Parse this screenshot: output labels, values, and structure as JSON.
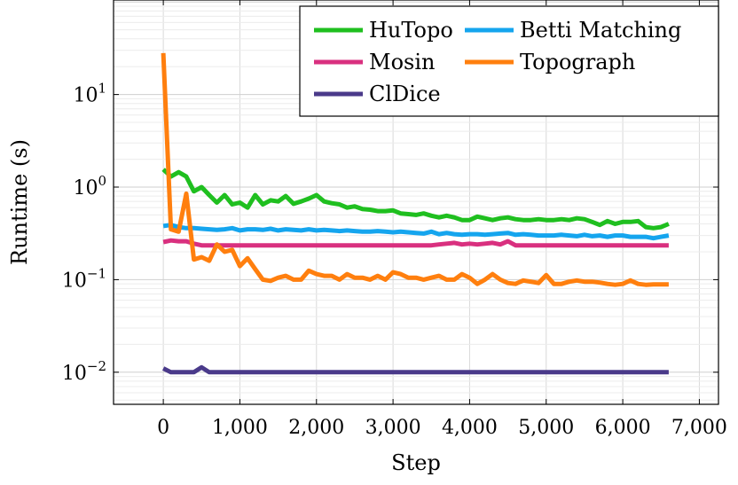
{
  "chart_data": {
    "type": "line",
    "title": "",
    "xlabel": "Step",
    "ylabel": "Runtime (s)",
    "xlim": [
      -650,
      7250
    ],
    "ylim": [
      0.0045,
      105
    ],
    "yscale": "log",
    "grid": true,
    "legend": "top-right",
    "x_ticks": [
      {
        "value": 0,
        "label": "0"
      },
      {
        "value": 1000,
        "label": "1,000"
      },
      {
        "value": 2000,
        "label": "2,000"
      },
      {
        "value": 3000,
        "label": "3,000"
      },
      {
        "value": 4000,
        "label": "4,000"
      },
      {
        "value": 5000,
        "label": "5,000"
      },
      {
        "value": 6000,
        "label": "6,000"
      },
      {
        "value": 7000,
        "label": "7,000"
      }
    ],
    "y_ticks": [
      {
        "value": 0.01,
        "base": "10",
        "exp": "−2"
      },
      {
        "value": 0.1,
        "base": "10",
        "exp": "−1"
      },
      {
        "value": 1,
        "base": "10",
        "exp": "0"
      },
      {
        "value": 10,
        "base": "10",
        "exp": "1"
      }
    ],
    "series": [
      {
        "name": "HuTopo",
        "color": "#1fbf1f",
        "x": [
          0,
          100,
          200,
          300,
          400,
          500,
          600,
          700,
          800,
          900,
          1000,
          1100,
          1200,
          1300,
          1400,
          1500,
          1600,
          1700,
          1800,
          1900,
          2000,
          2100,
          2200,
          2300,
          2400,
          2500,
          2600,
          2700,
          2800,
          2900,
          3000,
          3100,
          3200,
          3300,
          3400,
          3500,
          3600,
          3700,
          3800,
          3900,
          4000,
          4100,
          4200,
          4300,
          4400,
          4500,
          4600,
          4700,
          4800,
          4900,
          5000,
          5100,
          5200,
          5300,
          5400,
          5500,
          5600,
          5700,
          5800,
          5900,
          6000,
          6100,
          6200,
          6300,
          6400,
          6500,
          6600
        ],
        "y": [
          1.55,
          1.3,
          1.45,
          1.3,
          0.9,
          1.0,
          0.82,
          0.68,
          0.82,
          0.65,
          0.68,
          0.6,
          0.82,
          0.65,
          0.72,
          0.7,
          0.8,
          0.66,
          0.7,
          0.75,
          0.82,
          0.7,
          0.67,
          0.65,
          0.6,
          0.62,
          0.58,
          0.57,
          0.55,
          0.55,
          0.56,
          0.52,
          0.51,
          0.5,
          0.52,
          0.49,
          0.47,
          0.49,
          0.47,
          0.44,
          0.44,
          0.48,
          0.46,
          0.44,
          0.46,
          0.47,
          0.45,
          0.44,
          0.44,
          0.45,
          0.44,
          0.44,
          0.45,
          0.44,
          0.46,
          0.45,
          0.42,
          0.39,
          0.43,
          0.4,
          0.42,
          0.42,
          0.43,
          0.37,
          0.36,
          0.37,
          0.4
        ]
      },
      {
        "name": "Betti Matching",
        "color": "#15a5ee",
        "x": [
          0,
          100,
          200,
          300,
          400,
          500,
          600,
          700,
          800,
          900,
          1000,
          1100,
          1200,
          1300,
          1400,
          1500,
          1600,
          1700,
          1800,
          1900,
          2000,
          2100,
          2200,
          2300,
          2400,
          2500,
          2600,
          2700,
          2800,
          2900,
          3000,
          3100,
          3200,
          3300,
          3400,
          3500,
          3600,
          3700,
          3800,
          3900,
          4000,
          4100,
          4200,
          4300,
          4400,
          4500,
          4600,
          4700,
          4800,
          4900,
          5000,
          5100,
          5200,
          5300,
          5400,
          5500,
          5600,
          5700,
          5800,
          5900,
          6000,
          6100,
          6200,
          6300,
          6400,
          6500,
          6600
        ],
        "y": [
          0.38,
          0.39,
          0.37,
          0.36,
          0.36,
          0.355,
          0.35,
          0.345,
          0.35,
          0.36,
          0.34,
          0.35,
          0.35,
          0.345,
          0.355,
          0.34,
          0.35,
          0.345,
          0.34,
          0.35,
          0.34,
          0.345,
          0.34,
          0.335,
          0.34,
          0.335,
          0.33,
          0.33,
          0.335,
          0.33,
          0.325,
          0.33,
          0.325,
          0.32,
          0.315,
          0.33,
          0.31,
          0.32,
          0.31,
          0.305,
          0.31,
          0.31,
          0.305,
          0.31,
          0.315,
          0.32,
          0.305,
          0.31,
          0.305,
          0.3,
          0.3,
          0.3,
          0.305,
          0.3,
          0.295,
          0.305,
          0.295,
          0.3,
          0.29,
          0.3,
          0.3,
          0.29,
          0.29,
          0.29,
          0.28,
          0.29,
          0.3
        ]
      },
      {
        "name": "Mosin",
        "color": "#d9307f",
        "x": [
          0,
          100,
          200,
          300,
          400,
          500,
          600,
          700,
          800,
          900,
          1000,
          1100,
          1200,
          1300,
          1400,
          1500,
          1600,
          1700,
          1800,
          1900,
          2000,
          2100,
          2200,
          2300,
          2400,
          2500,
          2600,
          2700,
          2800,
          2900,
          3000,
          3100,
          3200,
          3300,
          3400,
          3500,
          3600,
          3700,
          3800,
          3900,
          4000,
          4100,
          4200,
          4300,
          4400,
          4500,
          4600,
          4700,
          4800,
          4900,
          5000,
          5100,
          5200,
          5300,
          5400,
          5500,
          5600,
          5700,
          5800,
          5900,
          6000,
          6100,
          6200,
          6300,
          6400,
          6500,
          6600
        ],
        "y": [
          0.255,
          0.265,
          0.26,
          0.26,
          0.245,
          0.235,
          0.235,
          0.235,
          0.235,
          0.235,
          0.235,
          0.235,
          0.235,
          0.235,
          0.235,
          0.235,
          0.235,
          0.235,
          0.235,
          0.235,
          0.235,
          0.235,
          0.235,
          0.235,
          0.235,
          0.235,
          0.235,
          0.235,
          0.235,
          0.235,
          0.235,
          0.235,
          0.235,
          0.235,
          0.235,
          0.235,
          0.24,
          0.245,
          0.25,
          0.24,
          0.245,
          0.24,
          0.245,
          0.25,
          0.24,
          0.26,
          0.235,
          0.235,
          0.235,
          0.235,
          0.235,
          0.235,
          0.235,
          0.235,
          0.235,
          0.235,
          0.235,
          0.235,
          0.235,
          0.235,
          0.235,
          0.235,
          0.235,
          0.235,
          0.235,
          0.235,
          0.235
        ]
      },
      {
        "name": "Topograph",
        "color": "#ff7f0e",
        "x": [
          0,
          100,
          200,
          300,
          400,
          500,
          600,
          700,
          800,
          900,
          1000,
          1100,
          1200,
          1300,
          1400,
          1500,
          1600,
          1700,
          1800,
          1900,
          2000,
          2100,
          2200,
          2300,
          2400,
          2500,
          2600,
          2700,
          2800,
          2900,
          3000,
          3100,
          3200,
          3300,
          3400,
          3500,
          3600,
          3700,
          3800,
          3900,
          4000,
          4100,
          4200,
          4300,
          4400,
          4500,
          4600,
          4700,
          4800,
          4900,
          5000,
          5100,
          5200,
          5300,
          5400,
          5500,
          5600,
          5700,
          5800,
          5900,
          6000,
          6100,
          6200,
          6300,
          6400,
          6500,
          6600
        ],
        "y": [
          28,
          0.35,
          0.33,
          0.85,
          0.165,
          0.175,
          0.16,
          0.24,
          0.2,
          0.21,
          0.14,
          0.17,
          0.13,
          0.1,
          0.097,
          0.105,
          0.11,
          0.1,
          0.1,
          0.125,
          0.115,
          0.11,
          0.11,
          0.1,
          0.115,
          0.105,
          0.105,
          0.1,
          0.11,
          0.1,
          0.12,
          0.115,
          0.105,
          0.105,
          0.1,
          0.105,
          0.11,
          0.1,
          0.1,
          0.115,
          0.105,
          0.09,
          0.1,
          0.115,
          0.1,
          0.092,
          0.09,
          0.098,
          0.095,
          0.092,
          0.112,
          0.09,
          0.09,
          0.095,
          0.098,
          0.095,
          0.095,
          0.093,
          0.09,
          0.088,
          0.09,
          0.098,
          0.09,
          0.088,
          0.089,
          0.089,
          0.089
        ]
      },
      {
        "name": "ClDice",
        "color": "#4a3a8a",
        "x": [
          0,
          100,
          200,
          300,
          400,
          500,
          600,
          700,
          800,
          900,
          1000,
          1500,
          2000,
          2500,
          3000,
          3500,
          4000,
          4500,
          5000,
          5500,
          6000,
          6500,
          6600
        ],
        "y": [
          0.011,
          0.01,
          0.01,
          0.01,
          0.01,
          0.0113,
          0.01,
          0.01,
          0.01,
          0.01,
          0.01,
          0.01,
          0.01,
          0.01,
          0.01,
          0.01,
          0.01,
          0.01,
          0.01,
          0.01,
          0.01,
          0.01,
          0.01
        ]
      }
    ],
    "legend_layout": [
      [
        "HuTopo",
        "Betti Matching"
      ],
      [
        "Mosin",
        "Topograph"
      ],
      [
        "ClDice"
      ]
    ]
  }
}
